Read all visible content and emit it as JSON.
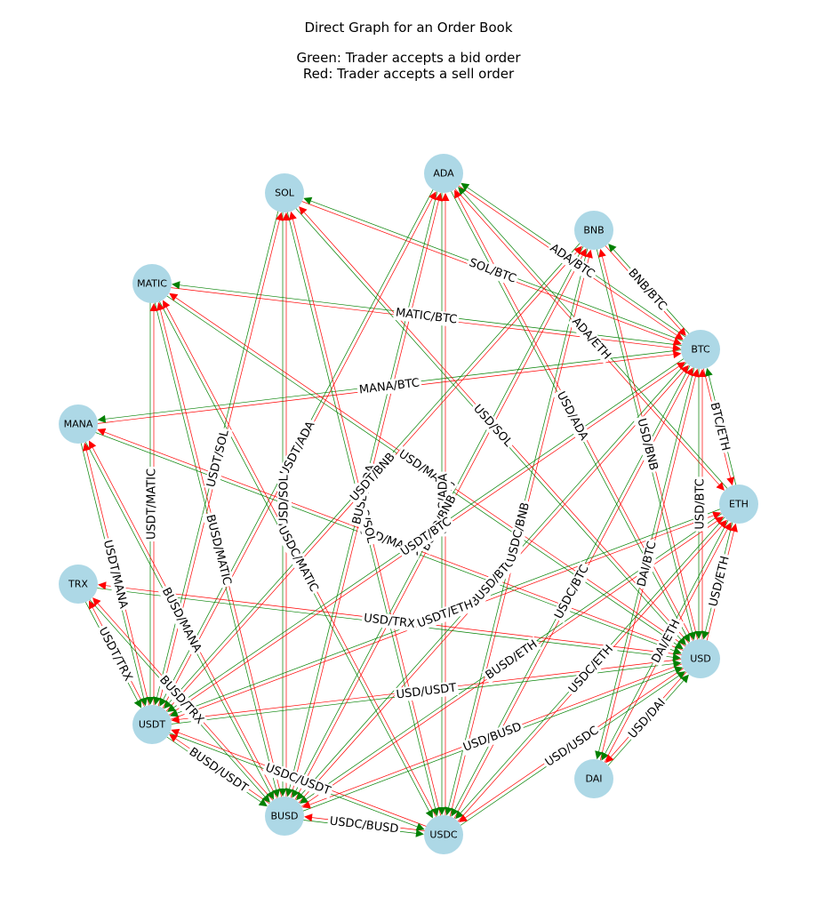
{
  "title": "Direct Graph for an Order Book",
  "subtitle_lines": [
    "Green: Trader accepts a bid order",
    "Red: Trader accepts a sell order"
  ],
  "colors": {
    "bid": "#008000",
    "sell": "#ff0000",
    "node": "#add8e6",
    "label_bg": "#ffffff"
  },
  "nodes": [
    "ADA",
    "BNB",
    "BTC",
    "ETH",
    "USD",
    "DAI",
    "USDC",
    "BUSD",
    "USDT",
    "TRX",
    "MANA",
    "MATIC",
    "SOL"
  ],
  "pairs": [
    {
      "label": "SOL/BTC",
      "base": "SOL",
      "quote": "BTC"
    },
    {
      "label": "ADA/BTC",
      "base": "ADA",
      "quote": "BTC"
    },
    {
      "label": "BNB/BTC",
      "base": "BNB",
      "quote": "BTC"
    },
    {
      "label": "MATIC/BTC",
      "base": "MATIC",
      "quote": "BTC"
    },
    {
      "label": "ADA/ETH",
      "base": "ADA",
      "quote": "ETH"
    },
    {
      "label": "MANA/BTC",
      "base": "MANA",
      "quote": "BTC"
    },
    {
      "label": "BTC/ETH",
      "base": "BTC",
      "quote": "ETH"
    },
    {
      "label": "USD/SOL",
      "base": "USD",
      "quote": "SOL"
    },
    {
      "label": "USD/ADA",
      "base": "USD",
      "quote": "ADA"
    },
    {
      "label": "USD/BNB",
      "base": "USD",
      "quote": "BNB"
    },
    {
      "label": "USDT/SOL",
      "base": "USDT",
      "quote": "SOL"
    },
    {
      "label": "USDT/ADA",
      "base": "USDT",
      "quote": "ADA"
    },
    {
      "label": "USD/MATIC",
      "base": "USD",
      "quote": "MATIC"
    },
    {
      "label": "USD/BTC",
      "base": "USD",
      "quote": "BTC"
    },
    {
      "label": "USDT/MATIC",
      "base": "USDT",
      "quote": "MATIC"
    },
    {
      "label": "BUSD/SOL",
      "base": "BUSD",
      "quote": "SOL"
    },
    {
      "label": "BUSD/MATIC",
      "base": "BUSD",
      "quote": "MATIC"
    },
    {
      "label": "USD/MANA",
      "base": "USD",
      "quote": "MANA"
    },
    {
      "label": "USDC/ADA",
      "base": "USDC",
      "quote": "ADA"
    },
    {
      "label": "USDT/MANA",
      "base": "USDT",
      "quote": "MANA"
    },
    {
      "label": "DAI/BTC",
      "base": "DAI",
      "quote": "BTC"
    },
    {
      "label": "USD/ETH",
      "base": "USD",
      "quote": "ETH"
    },
    {
      "label": "BUSD/MANA",
      "base": "BUSD",
      "quote": "MANA"
    },
    {
      "label": "USDC/BTC",
      "base": "USDC",
      "quote": "BTC"
    },
    {
      "label": "BUSD/BTC",
      "base": "BUSD",
      "quote": "BTC"
    },
    {
      "label": "USD/TRX",
      "base": "USD",
      "quote": "TRX"
    },
    {
      "label": "USDT/ETH",
      "base": "USDT",
      "quote": "ETH"
    },
    {
      "label": "DAI/ETH",
      "base": "DAI",
      "quote": "ETH"
    },
    {
      "label": "USDT/TRX",
      "base": "USDT",
      "quote": "TRX"
    },
    {
      "label": "BUSD/ETH",
      "base": "BUSD",
      "quote": "ETH"
    },
    {
      "label": "USDC/ETH",
      "base": "USDC",
      "quote": "ETH"
    },
    {
      "label": "BUSD/TRX",
      "base": "BUSD",
      "quote": "TRX"
    },
    {
      "label": "USD/USDT",
      "base": "USD",
      "quote": "USDT"
    },
    {
      "label": "USD/DAI",
      "base": "USD",
      "quote": "DAI"
    },
    {
      "label": "USD/BUSD",
      "base": "USD",
      "quote": "BUSD"
    },
    {
      "label": "BUSD/USDT",
      "base": "BUSD",
      "quote": "USDT"
    },
    {
      "label": "USDC/USDT",
      "base": "USDC",
      "quote": "USDT"
    },
    {
      "label": "USD/USDC",
      "base": "USD",
      "quote": "USDC"
    },
    {
      "label": "USDC/BUSD",
      "base": "USDC",
      "quote": "BUSD"
    },
    {
      "label": "USDC/SOL",
      "base": "USDC",
      "quote": "SOL"
    },
    {
      "label": "BUSD/ADA",
      "base": "BUSD",
      "quote": "ADA"
    },
    {
      "label": "USDC/MATIC",
      "base": "USDC",
      "quote": "MATIC"
    },
    {
      "label": "USDC/BNB",
      "base": "USDC",
      "quote": "BNB"
    },
    {
      "label": "BUSD/BNB",
      "base": "BUSD",
      "quote": "BNB"
    },
    {
      "label": "USDT/BNB",
      "base": "USDT",
      "quote": "BNB"
    },
    {
      "label": "USDT/BTC",
      "base": "USDT",
      "quote": "BTC"
    }
  ]
}
